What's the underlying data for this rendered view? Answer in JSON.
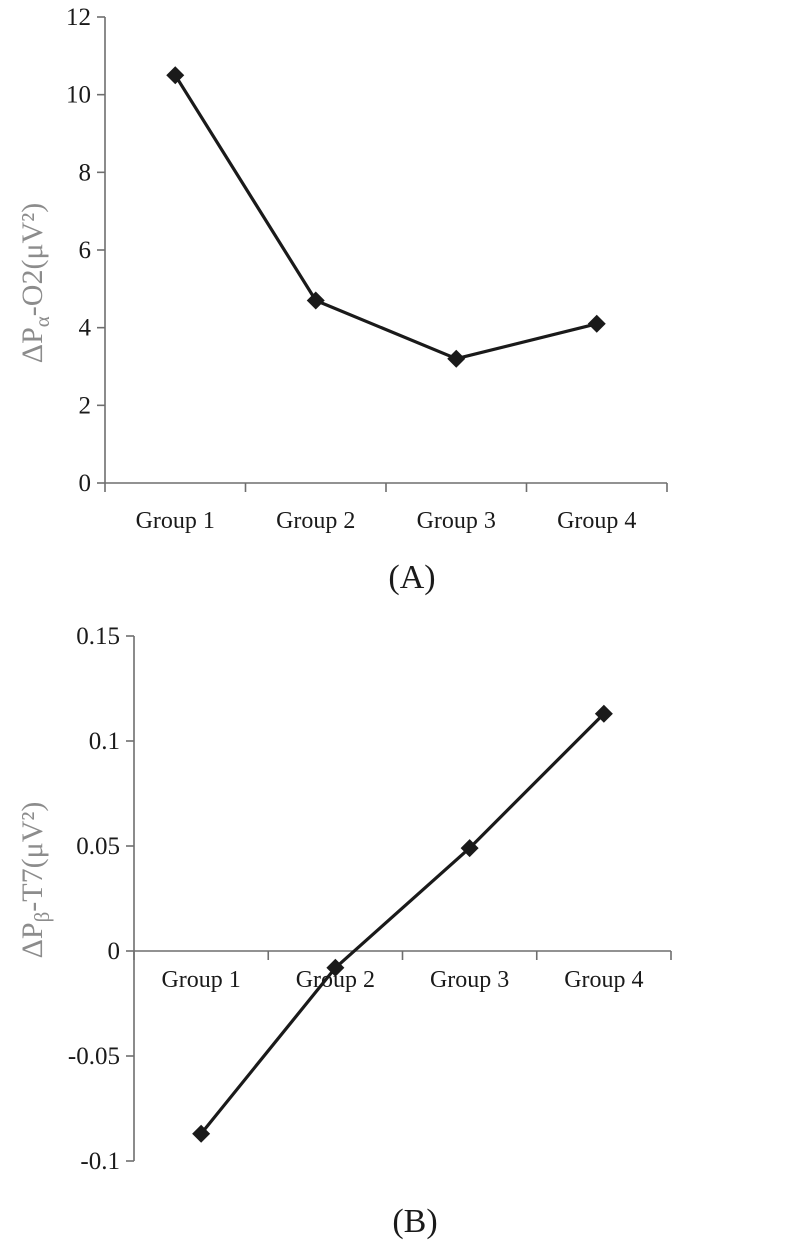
{
  "chart_data": [
    {
      "type": "line",
      "panel_label": "(A)",
      "ylabel": "ΔPα-O2(μV²)",
      "ylabel_parts": {
        "prefix": "ΔP",
        "subscript": "α",
        "suffix": "-O2(μV²)"
      },
      "categories": [
        "Group 1",
        "Group 2",
        "Group 3",
        "Group 4"
      ],
      "series": [
        {
          "values": [
            10.5,
            4.7,
            3.2,
            4.1
          ]
        }
      ],
      "ylim": [
        0,
        12
      ],
      "yticks": [
        "0",
        "2",
        "4",
        "6",
        "8",
        "10",
        "12"
      ],
      "grid": false,
      "legend": "none",
      "marker": "diamond"
    },
    {
      "type": "line",
      "panel_label": "(B)",
      "ylabel": "ΔPβ-T7(μV²)",
      "ylabel_parts": {
        "prefix": "ΔP",
        "subscript": "β",
        "suffix": "-T7(μV²)"
      },
      "categories": [
        "Group 1",
        "Group 2",
        "Group 3",
        "Group 4"
      ],
      "series": [
        {
          "values": [
            -0.087,
            -0.008,
            0.049,
            0.113
          ]
        }
      ],
      "ylim": [
        -0.1,
        0.15
      ],
      "yticks": [
        "-0.1",
        "-0.05",
        "0",
        "0.05",
        "0.1",
        "0.15"
      ],
      "grid": false,
      "legend": "none",
      "marker": "diamond"
    }
  ]
}
